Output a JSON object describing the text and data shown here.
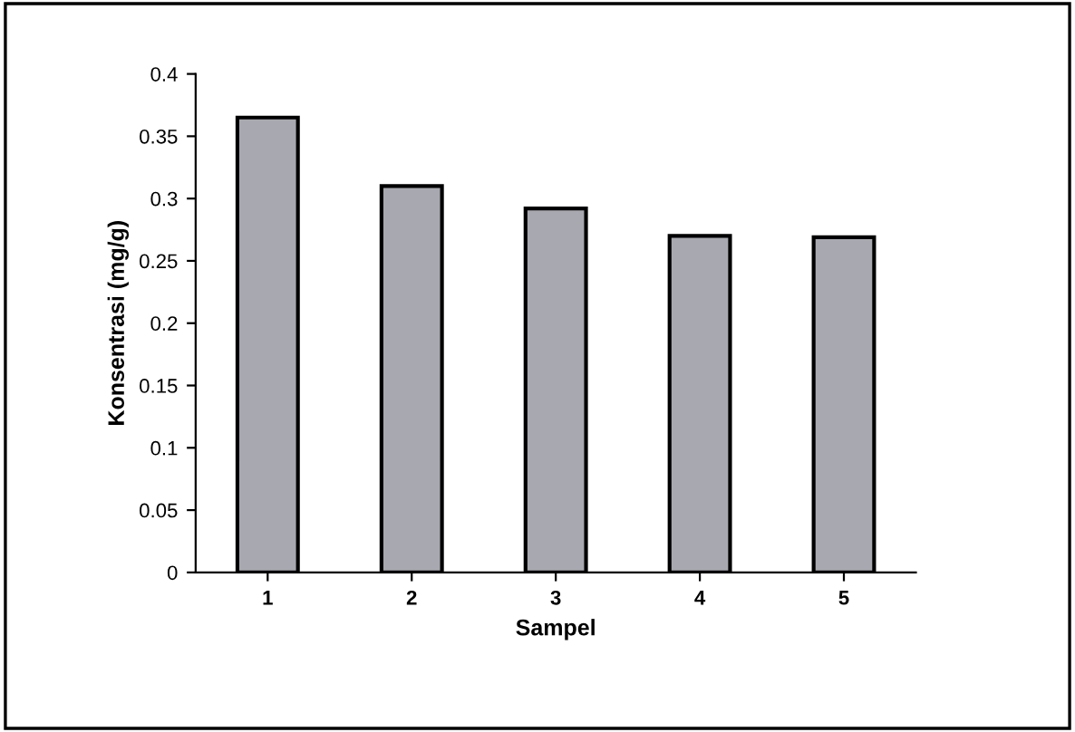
{
  "chart_data": {
    "type": "bar",
    "xlabel": "Sampel",
    "ylabel": "Konsentrasi (mg/g)",
    "categories": [
      "1",
      "2",
      "3",
      "4",
      "5"
    ],
    "values": [
      0.365,
      0.31,
      0.292,
      0.27,
      0.269
    ],
    "color": "#a8a8b0",
    "ylim": [
      0,
      0.4
    ],
    "yticks": [
      0,
      0.05,
      0.1,
      0.15,
      0.2,
      0.25,
      0.3,
      0.35,
      0.4
    ],
    "grid": false
  }
}
